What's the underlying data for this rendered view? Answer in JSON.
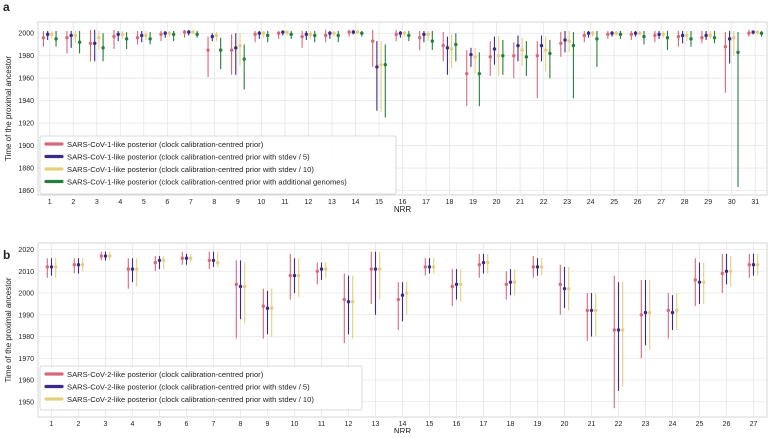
{
  "panels": [
    {
      "letter": "a"
    },
    {
      "letter": "b"
    }
  ],
  "colors": {
    "series1": "#d9687b",
    "series2": "#3b2a8c",
    "series3": "#e6cf7c",
    "series4": "#247f3a",
    "grid": "#e6e6e6",
    "axis": "#cccccc",
    "text": "#222222"
  },
  "chart_data": [
    {
      "type": "scatter",
      "subtype": "point-estimate-with-credible-interval",
      "xlabel": "NRR",
      "ylabel": "Time of the proximal ancestor",
      "ylim": [
        1856,
        2010
      ],
      "yticks": [
        1860,
        1880,
        1900,
        1920,
        1940,
        1960,
        1980,
        2000
      ],
      "grid": true,
      "legend_position": "bottom-left",
      "categories": [
        "1",
        "2",
        "3",
        "4",
        "5",
        "6",
        "7",
        "8",
        "9",
        "10",
        "11",
        "12",
        "13",
        "14",
        "15",
        "16",
        "17",
        "18",
        "19",
        "20",
        "21",
        "22",
        "23",
        "24",
        "25",
        "26",
        "27",
        "28",
        "29",
        "30",
        "31"
      ],
      "series": [
        {
          "name": "SARS-CoV-1-like posterior (clock calibration-centred prior)",
          "values": [
            1996,
            1996,
            1991,
            1997,
            1996,
            1999,
            2001,
            1985,
            1985,
            1999,
            2000,
            1997,
            1998,
            2001,
            1993,
            1999,
            1996,
            1989,
            1964,
            1979,
            1980,
            1980,
            1991,
            1998,
            1999,
            1999,
            1998,
            1997,
            1996,
            1988,
            2000
          ],
          "low": [
            1988,
            1982,
            1975,
            1986,
            1990,
            1993,
            1996,
            1961,
            1963,
            1992,
            1995,
            1987,
            1992,
            1997,
            1970,
            1993,
            1985,
            1975,
            1935,
            1962,
            1960,
            1942,
            1979,
            1992,
            1995,
            1994,
            1992,
            1988,
            1991,
            1947,
            1997
          ],
          "high": [
            2002,
            2002,
            2003,
            2003,
            2002,
            2002,
            2003,
            1997,
            1999,
            2002,
            2002,
            2002,
            2003,
            2003,
            2003,
            2003,
            2002,
            2001,
            1985,
            1993,
            1992,
            1993,
            2001,
            2002,
            2002,
            2002,
            2002,
            2002,
            2002,
            2001,
            2003
          ]
        },
        {
          "name": "SARS-CoV-1-like posterior (clock calibration-centred prior with stdev / 5)",
          "values": [
            1999,
            1998,
            1991,
            1999,
            1998,
            2000,
            2001,
            1997,
            1987,
            2000,
            2001,
            1999,
            2000,
            2001,
            1970,
            2000,
            1999,
            1987,
            1981,
            1986,
            1989,
            1989,
            1994,
            2000,
            2000,
            2000,
            1999,
            1998,
            1998,
            1995,
            2001
          ],
          "low": [
            1994,
            1987,
            1975,
            1993,
            1992,
            1996,
            1998,
            1993,
            1963,
            1995,
            1998,
            1994,
            1995,
            1999,
            1931,
            1996,
            1992,
            1963,
            1970,
            1972,
            1975,
            1975,
            1983,
            1996,
            1997,
            1997,
            1995,
            1991,
            1994,
            1973,
            1999
          ],
          "high": [
            2002,
            2002,
            2003,
            2002,
            2002,
            2002,
            2003,
            2000,
            2000,
            2002,
            2002,
            2002,
            2002,
            2003,
            1993,
            2002,
            2002,
            1997,
            1987,
            1997,
            1998,
            1998,
            2002,
            2002,
            2002,
            2002,
            2002,
            2002,
            2002,
            2002,
            2002
          ]
        },
        {
          "name": "SARS-CoV-1-like posterior (clock calibration-centred prior with stdev / 10)",
          "values": [
            1999,
            1998,
            1996,
            1999,
            1998,
            2000,
            2001,
            1998,
            1989,
            2000,
            2001,
            1999,
            2000,
            2001,
            1972,
            2000,
            1999,
            1986,
            1979,
            1980,
            1985,
            1985,
            1993,
            2000,
            2000,
            2000,
            1999,
            1998,
            1998,
            1996,
            2001
          ],
          "low": [
            1995,
            1991,
            1985,
            1995,
            1994,
            1997,
            1999,
            1993,
            1971,
            1996,
            1998,
            1995,
            1997,
            1999,
            1930,
            1997,
            1993,
            1969,
            1964,
            1962,
            1971,
            1966,
            1983,
            1997,
            1998,
            1998,
            1996,
            1993,
            1995,
            1980,
            1999
          ],
          "high": [
            2002,
            2002,
            2002,
            2002,
            2002,
            2002,
            2003,
            2001,
            2000,
            2002,
            2002,
            2002,
            2002,
            2003,
            1993,
            2002,
            2002,
            1999,
            1987,
            1998,
            1996,
            1997,
            2002,
            2002,
            2002,
            2002,
            2002,
            2002,
            2002,
            2002,
            2002
          ]
        },
        {
          "name": "SARS-CoV-1-like posterior (clock calibration-centred prior with additional genomes)",
          "values": [
            1995,
            1992,
            1987,
            1995,
            1995,
            1999,
            1999,
            1985,
            1977,
            1998,
            1999,
            1998,
            1998,
            2000,
            1972,
            1998,
            1993,
            1990,
            1964,
            1980,
            1979,
            1982,
            1989,
            1995,
            1999,
            1997,
            1996,
            1995,
            1996,
            1983,
            2000
          ],
          "low": [
            1988,
            1982,
            1975,
            1986,
            1990,
            1993,
            1996,
            1968,
            1950,
            1992,
            1995,
            1992,
            1992,
            1997,
            1925,
            1993,
            1985,
            1975,
            1935,
            1963,
            1962,
            1960,
            1942,
            1970,
            1995,
            1990,
            1985,
            1988,
            1991,
            1863,
            1997
          ],
          "high": [
            2002,
            2002,
            2000,
            2001,
            2001,
            2002,
            2002,
            1996,
            1990,
            2002,
            2002,
            2002,
            2002,
            2002,
            1990,
            2002,
            2002,
            2000,
            1983,
            1994,
            1993,
            1994,
            2001,
            2002,
            2002,
            2002,
            2002,
            2002,
            2002,
            2001,
            2002
          ]
        }
      ]
    },
    {
      "type": "scatter",
      "subtype": "point-estimate-with-credible-interval",
      "xlabel": "NRR",
      "ylabel": "Time of the proximal ancestor",
      "ylim": [
        1943,
        2023
      ],
      "yticks": [
        1950,
        1960,
        1970,
        1980,
        1990,
        2000,
        2010,
        2020
      ],
      "grid": true,
      "legend_position": "bottom-left",
      "categories": [
        "1",
        "2",
        "3",
        "4",
        "5",
        "6",
        "7",
        "8",
        "9",
        "10",
        "11",
        "12",
        "13",
        "14",
        "15",
        "16",
        "17",
        "18",
        "19",
        "20",
        "21",
        "22",
        "23",
        "24",
        "25",
        "26",
        "27"
      ],
      "series": [
        {
          "name": "SARS-CoV-2-like posterior (clock calibration-centred prior)",
          "values": [
            2012,
            2013,
            2017,
            2011,
            2014,
            2016,
            2015,
            2004,
            1994,
            2008,
            2010,
            1997,
            2011,
            1997,
            2012,
            2003,
            2013,
            2004,
            2012,
            2004,
            1992,
            1983,
            1990,
            1992,
            2006,
            2009,
            2013
          ],
          "low": [
            2007,
            2009,
            2015,
            2002,
            2010,
            2013,
            2011,
            1979,
            1979,
            1997,
            2004,
            1977,
            1995,
            1983,
            2008,
            1994,
            2007,
            1997,
            2007,
            1990,
            1978,
            1947,
            1970,
            1979,
            1994,
            2000,
            2007
          ],
          "high": [
            2016,
            2016,
            2019,
            2016,
            2017,
            2019,
            2019,
            2015,
            2002,
            2018,
            2014,
            2009,
            2019,
            2005,
            2016,
            2011,
            2018,
            2010,
            2017,
            2013,
            2000,
            2008,
            2006,
            2000,
            2016,
            2018,
            2018
          ]
        },
        {
          "name": "SARS-CoV-2-like posterior (clock calibration-centred prior with stdev / 5)",
          "values": [
            2012,
            2013,
            2017,
            2011,
            2015,
            2016,
            2015,
            2003,
            1993,
            2008,
            2011,
            1996,
            2011,
            1999,
            2012,
            2004,
            2014,
            2005,
            2012,
            2002,
            1992,
            1983,
            1991,
            1991,
            2005,
            2010,
            2013
          ],
          "low": [
            2008,
            2009,
            2015,
            2005,
            2011,
            2013,
            2012,
            1988,
            1981,
            2000,
            2006,
            1981,
            1990,
            1987,
            2009,
            1997,
            2009,
            1999,
            2008,
            1993,
            1980,
            1955,
            1976,
            1983,
            1995,
            2004,
            2008
          ],
          "high": [
            2016,
            2016,
            2019,
            2016,
            2017,
            2018,
            2019,
            2015,
            2001,
            2016,
            2014,
            2008,
            2019,
            2005,
            2016,
            2011,
            2018,
            2011,
            2016,
            2012,
            2000,
            2005,
            2006,
            1999,
            2014,
            2018,
            2018
          ]
        },
        {
          "name": "SARS-CoV-2-like posterior (clock calibration-centred prior with stdev / 10)",
          "values": [
            2012,
            2013,
            2017,
            2011,
            2015,
            2016,
            2014,
            2003,
            1993,
            2008,
            2011,
            1996,
            2011,
            2000,
            2012,
            2004,
            2014,
            2005,
            2012,
            2002,
            1992,
            1983,
            1991,
            1992,
            2005,
            2010,
            2013
          ],
          "low": [
            2007,
            2010,
            2015,
            2003,
            2011,
            2014,
            2012,
            1986,
            1980,
            1998,
            2007,
            1979,
            1997,
            1990,
            2009,
            1996,
            2009,
            1999,
            2008,
            1992,
            1980,
            1957,
            1974,
            1983,
            1995,
            2003,
            2008
          ],
          "high": [
            2016,
            2016,
            2019,
            2016,
            2017,
            2018,
            2019,
            2014,
            2002,
            2016,
            2014,
            2008,
            2019,
            2005,
            2016,
            2011,
            2018,
            2011,
            2016,
            2012,
            2000,
            2005,
            2006,
            2000,
            2014,
            2017,
            2018
          ]
        }
      ]
    }
  ]
}
